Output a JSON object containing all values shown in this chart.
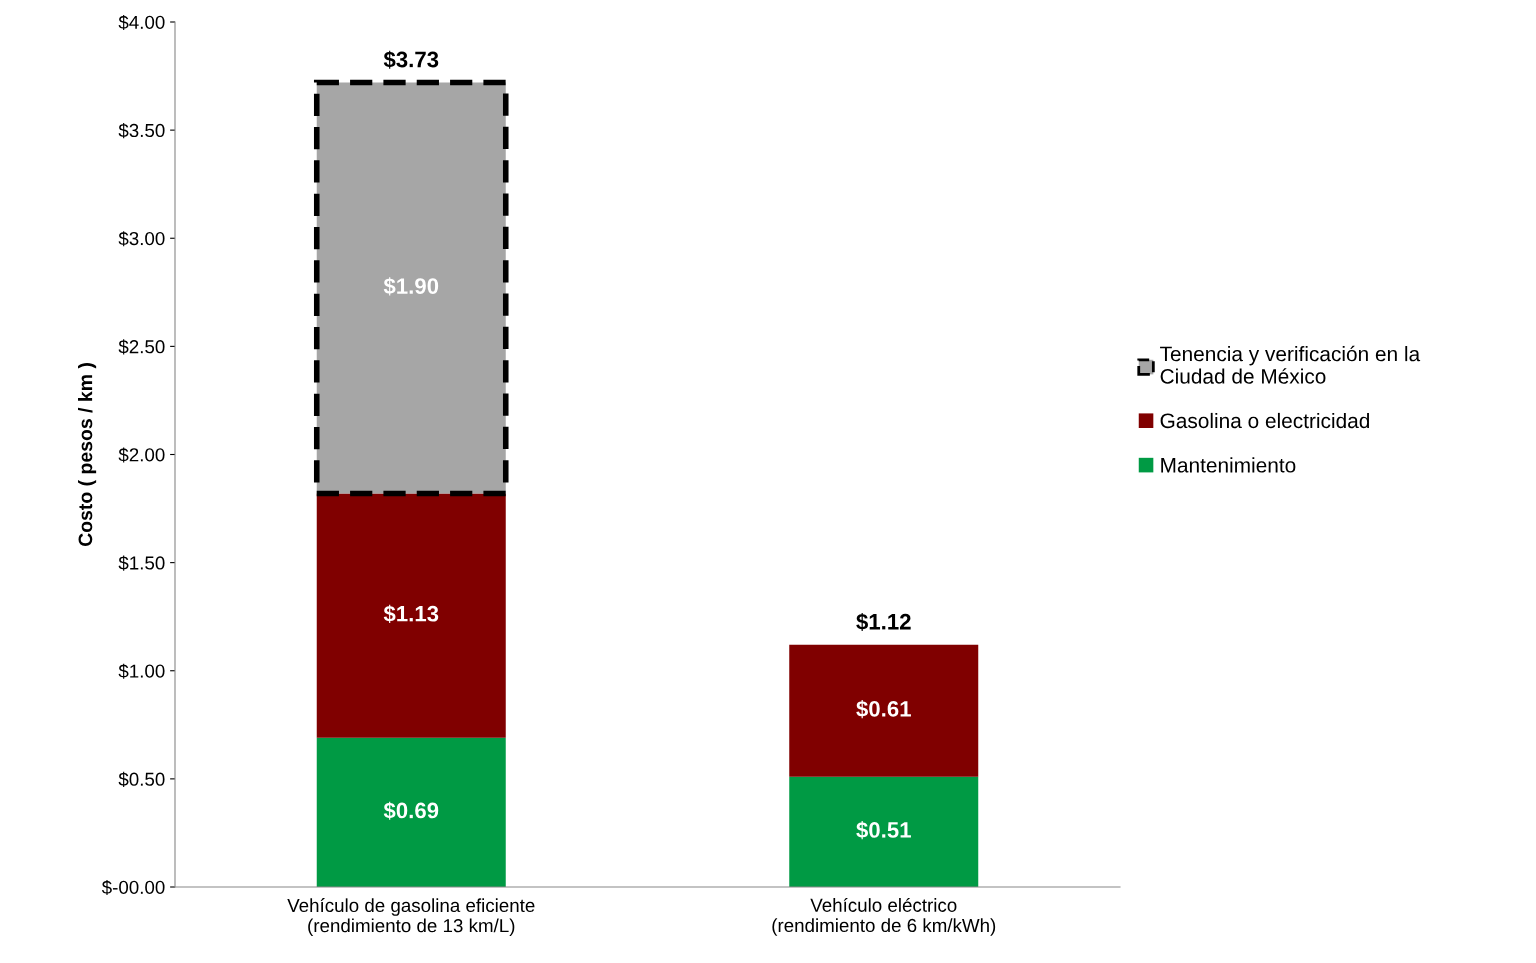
{
  "chart_data": {
    "type": "bar",
    "stacked": true,
    "ylabel": "Costo ( pesos / km )",
    "categories": [
      "Vehículo de gasolina eficiente\n(rendimiento de 13 km/L)",
      "Vehículo eléctrico\n(rendimiento de 6 km/kWh)"
    ],
    "series": [
      {
        "name": "Mantenimiento",
        "color": "#009a44",
        "values": [
          0.69,
          0.51
        ],
        "value_labels": [
          "$0.69",
          "$0.51"
        ]
      },
      {
        "name": "Gasolina o electricidad",
        "color": "#800000",
        "values": [
          1.13,
          0.61
        ],
        "value_labels": [
          "$1.13",
          "$0.61"
        ]
      },
      {
        "name": "Tenencia y verificación en la\nCiudad de México",
        "color": "#a6a6a6",
        "values": [
          1.9,
          null
        ],
        "value_labels": [
          "$1.90",
          null
        ],
        "line_style": "dashed"
      }
    ],
    "totals": [
      "$3.73",
      "$1.12"
    ],
    "ylim": [
      0,
      4
    ],
    "yticks": [
      {
        "value": 0,
        "label": "$-00.00"
      },
      {
        "value": 0.5,
        "label": "$0.50"
      },
      {
        "value": 1,
        "label": "$1.00"
      },
      {
        "value": 1.5,
        "label": "$1.50"
      },
      {
        "value": 2,
        "label": "$2.00"
      },
      {
        "value": 2.5,
        "label": "$2.50"
      },
      {
        "value": 3,
        "label": "$3.00"
      },
      {
        "value": 3.5,
        "label": "$3.50"
      },
      {
        "value": 4,
        "label": "$4.00"
      }
    ],
    "grid": false,
    "legend": "right"
  }
}
